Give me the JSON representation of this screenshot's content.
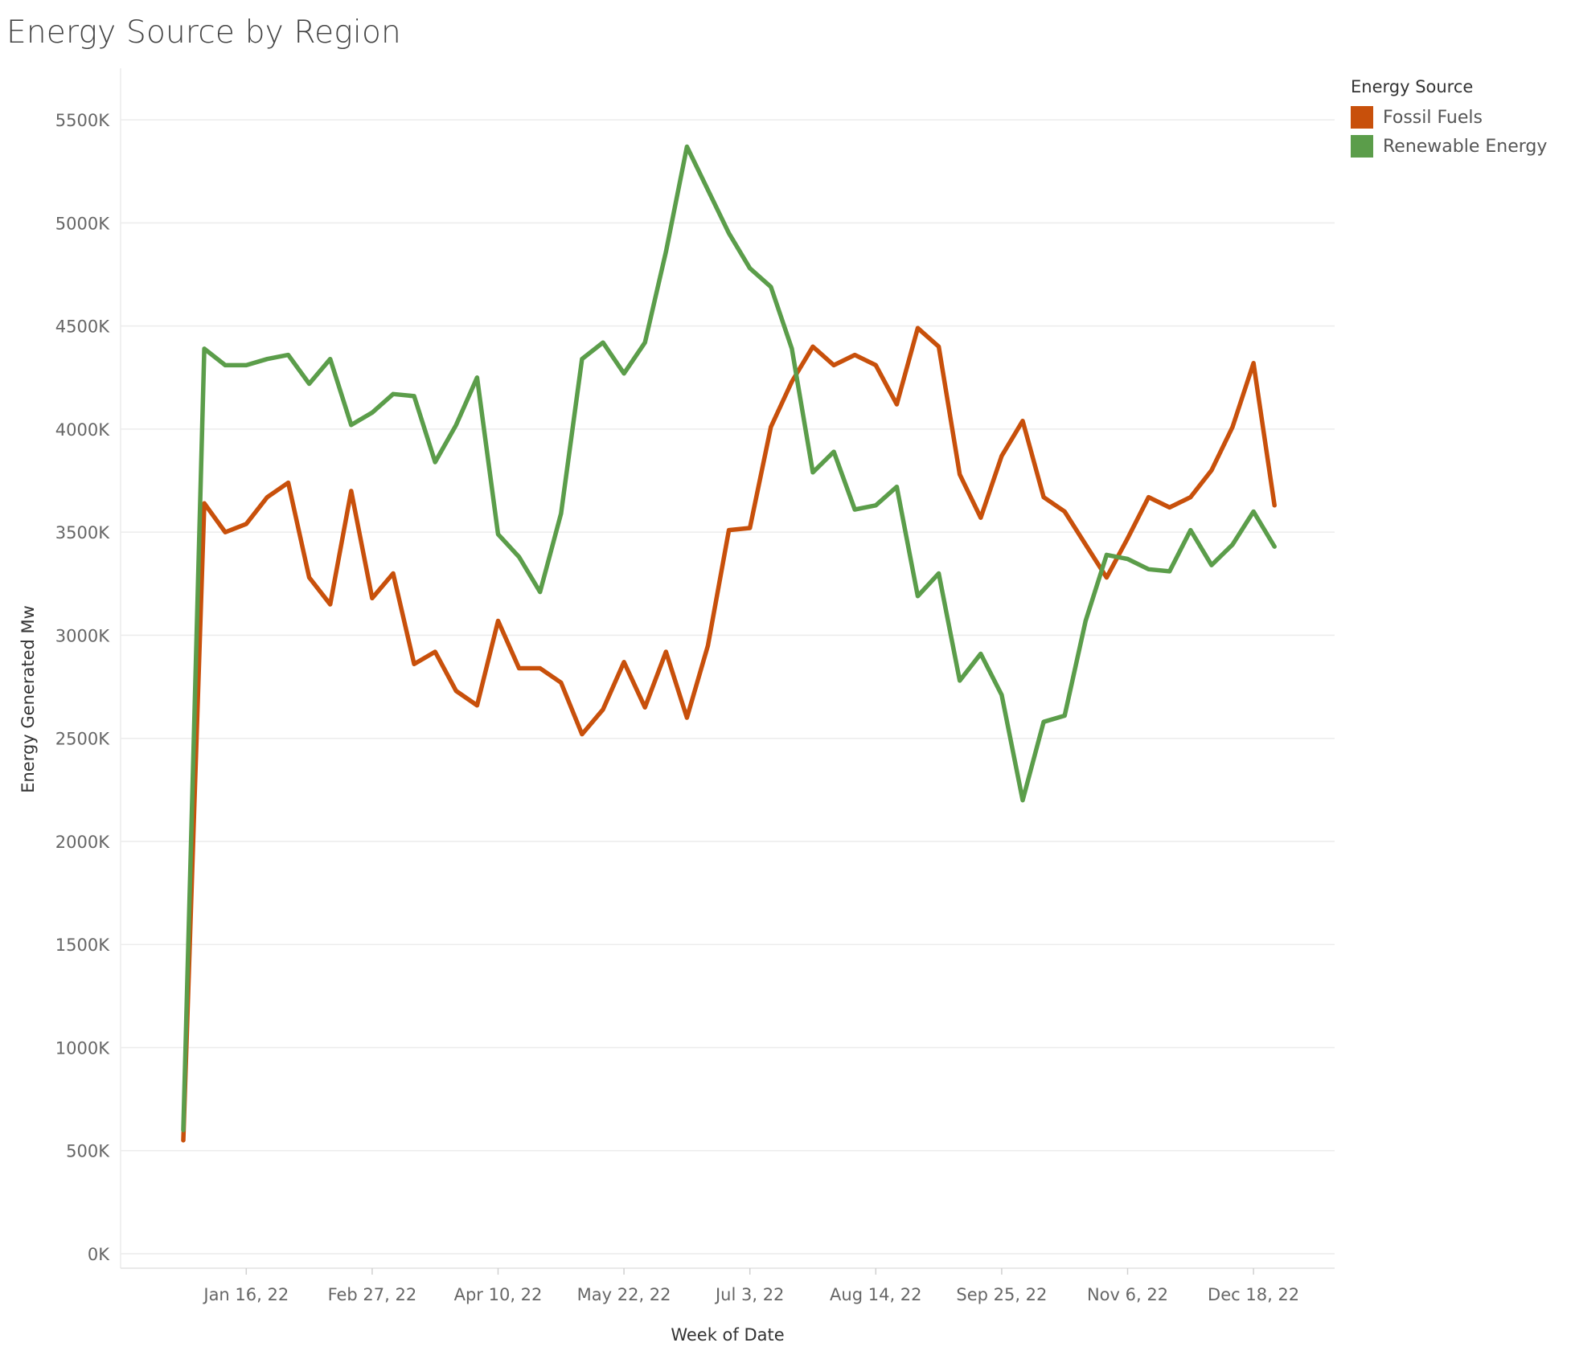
{
  "title": "Energy Source by Region",
  "legend": {
    "title": "Energy Source",
    "items": [
      {
        "label": "Fossil Fuels",
        "color": "#c8500b"
      },
      {
        "label": "Renewable Energy",
        "color": "#5b9d4a"
      }
    ]
  },
  "chart_data": {
    "type": "line",
    "title": "Energy Source by Region",
    "xlabel": "Week of Date",
    "ylabel": "Energy Generated Mw",
    "ylim": [
      0,
      5500
    ],
    "yticks": [
      0,
      500,
      1000,
      1500,
      2000,
      2500,
      3000,
      3500,
      4000,
      4500,
      5000,
      5500
    ],
    "ytick_labels": [
      "0K",
      "500K",
      "1000K",
      "1500K",
      "2000K",
      "2500K",
      "3000K",
      "3500K",
      "4000K",
      "4500K",
      "5000K",
      "5500K"
    ],
    "xticks": [
      "2022-01-16",
      "2022-02-27",
      "2022-04-10",
      "2022-05-22",
      "2022-07-03",
      "2022-08-14",
      "2022-09-25",
      "2022-11-06",
      "2022-12-18"
    ],
    "xtick_labels": [
      "Jan 16, 22",
      "Feb 27, 22",
      "Apr 10, 22",
      "May 22, 22",
      "Jul 3, 22",
      "Aug 14, 22",
      "Sep 25, 22",
      "Nov 6, 22",
      "Dec 18, 22"
    ],
    "x": [
      "2021-12-26",
      "2022-01-02",
      "2022-01-09",
      "2022-01-16",
      "2022-01-23",
      "2022-01-30",
      "2022-02-06",
      "2022-02-13",
      "2022-02-20",
      "2022-02-27",
      "2022-03-06",
      "2022-03-13",
      "2022-03-20",
      "2022-03-27",
      "2022-04-03",
      "2022-04-10",
      "2022-04-17",
      "2022-04-24",
      "2022-05-01",
      "2022-05-08",
      "2022-05-15",
      "2022-05-22",
      "2022-05-29",
      "2022-06-05",
      "2022-06-12",
      "2022-06-19",
      "2022-06-26",
      "2022-07-03",
      "2022-07-10",
      "2022-07-17",
      "2022-07-24",
      "2022-07-31",
      "2022-08-07",
      "2022-08-14",
      "2022-08-21",
      "2022-08-28",
      "2022-09-04",
      "2022-09-11",
      "2022-09-18",
      "2022-09-25",
      "2022-10-02",
      "2022-10-09",
      "2022-10-16",
      "2022-10-23",
      "2022-10-30",
      "2022-11-06",
      "2022-11-13",
      "2022-11-20",
      "2022-11-27",
      "2022-12-04",
      "2022-12-11",
      "2022-12-18",
      "2022-12-25"
    ],
    "grid": true,
    "legend_position": "top-right",
    "series": [
      {
        "name": "Fossil Fuels",
        "color": "#c8500b",
        "values": [
          550,
          3640,
          3500,
          3540,
          3670,
          3740,
          3280,
          3150,
          3700,
          3180,
          3300,
          2860,
          2920,
          2730,
          2660,
          3070,
          2840,
          2840,
          2770,
          2520,
          2640,
          2870,
          2650,
          2920,
          2600,
          2950,
          3510,
          3520,
          4010,
          4230,
          4400,
          4310,
          4360,
          4310,
          4120,
          4490,
          4400,
          3780,
          3570,
          3870,
          4040,
          3670,
          3600,
          3440,
          3280,
          3470,
          3670,
          3620,
          3670,
          3800,
          4010,
          4320,
          3630
        ]
      },
      {
        "name": "Renewable Energy",
        "color": "#5b9d4a",
        "values": [
          600,
          4390,
          4310,
          4310,
          4340,
          4360,
          4220,
          4340,
          4020,
          4080,
          4170,
          4160,
          3840,
          4020,
          4250,
          3490,
          3380,
          3210,
          3590,
          4340,
          4420,
          4270,
          4420,
          4860,
          5370,
          5160,
          4950,
          4780,
          4690,
          4390,
          3790,
          3890,
          3610,
          3630,
          3720,
          3190,
          3300,
          2780,
          2910,
          2710,
          2200,
          2580,
          2610,
          3070,
          3390,
          3370,
          3320,
          3310,
          3510,
          3340,
          3440,
          3600,
          3430
        ]
      }
    ]
  }
}
